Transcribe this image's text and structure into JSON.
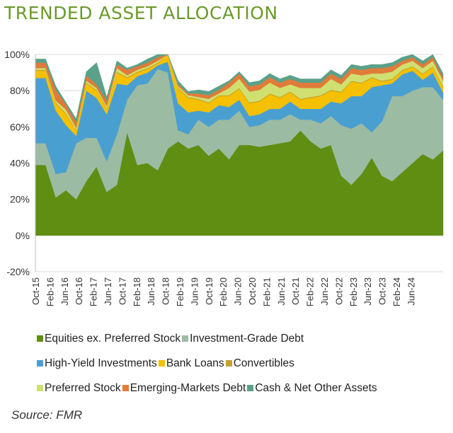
{
  "title": "TRENDED ASSET ALLOCATION",
  "source": "Source: FMR",
  "chart_data": {
    "type": "area",
    "stacked": true,
    "ylim": [
      -20,
      100
    ],
    "yticks": [
      "-20%",
      "0%",
      "20%",
      "40%",
      "60%",
      "80%",
      "100%"
    ],
    "ytick_values": [
      -20,
      0,
      20,
      40,
      60,
      80,
      100
    ],
    "xtick_labels": [
      "Oct-15",
      "Feb-16",
      "Jun-16",
      "Oct-16",
      "Feb-17",
      "Jun-17",
      "Oct-17",
      "Feb-18",
      "Jun-18",
      "Oct-18",
      "Feb-19",
      "Jun-19",
      "Oct-19",
      "Feb-20",
      "Jun-20",
      "Oct-20",
      "Feb-21",
      "Jun-21",
      "Oct-21",
      "Feb-22",
      "Jun-22",
      "Oct-22",
      "Feb-23",
      "Jun-23",
      "Oct-23",
      "Feb-24",
      "Jun-24"
    ],
    "x_start": "Oct-15",
    "x_end": "Oct-24",
    "grid": "horizontal",
    "legend_position": "bottom",
    "series": [
      {
        "name": "Equities ex. Preferred Stock",
        "color": "#5f8e12",
        "values": [
          39,
          39,
          21,
          25,
          20,
          30,
          38,
          24,
          28,
          57,
          39,
          40,
          36,
          48,
          52,
          48,
          50,
          44,
          48,
          42,
          50,
          50,
          49,
          50,
          51,
          52,
          58,
          52,
          48,
          50,
          33,
          28,
          34,
          43,
          33,
          30,
          35,
          40,
          45,
          42,
          47
        ]
      },
      {
        "name": "Investment-Grade Debt",
        "color": "#9cbba3",
        "values": [
          12,
          12,
          13,
          10,
          31,
          24,
          16,
          17,
          28,
          18,
          44,
          44,
          56,
          42,
          6,
          8,
          14,
          16,
          16,
          22,
          19,
          10,
          12,
          14,
          13,
          15,
          6,
          12,
          14,
          16,
          28,
          31,
          28,
          14,
          30,
          47,
          42,
          40,
          37,
          40,
          28
        ]
      },
      {
        "name": "High-Yield Investments",
        "color": "#4a9fd1",
        "values": [
          36,
          36,
          35,
          26,
          4,
          26,
          22,
          26,
          28,
          8,
          5,
          6,
          2,
          6,
          15,
          12,
          5,
          8,
          8,
          7,
          6,
          6,
          6,
          6,
          6,
          7,
          6,
          6,
          8,
          8,
          12,
          18,
          15,
          25,
          20,
          7,
          12,
          11,
          4,
          8,
          4
        ]
      },
      {
        "name": "Bank Loans",
        "color": "#f5c000",
        "values": [
          4,
          4,
          4,
          6,
          3,
          4,
          4,
          3,
          6,
          4,
          2,
          2,
          1,
          4,
          8,
          8,
          6,
          5,
          5,
          6,
          6,
          7,
          7,
          8,
          6,
          5,
          5,
          6,
          7,
          6,
          6,
          8,
          7,
          5,
          2,
          2,
          2,
          2,
          3,
          3,
          3
        ]
      },
      {
        "name": "Convertibles",
        "color": "#c8a226",
        "values": [
          0.5,
          0.5,
          0.5,
          0.5,
          0.5,
          0.5,
          0.5,
          0.5,
          0.5,
          0.5,
          0.5,
          0.5,
          0.5,
          0.5,
          0.5,
          0.5,
          0.5,
          0.5,
          0.5,
          0.5,
          0.5,
          0.5,
          0.5,
          0.5,
          0.5,
          0.5,
          0.5,
          0.5,
          0.5,
          0.5,
          0.5,
          0.5,
          0.5,
          0.5,
          0.5,
          0.5,
          0.5,
          0.5,
          0.5,
          0.5,
          0.5
        ]
      },
      {
        "name": "Preferred Stock",
        "color": "#cfe070",
        "values": [
          1,
          1,
          1,
          2,
          1,
          1,
          1,
          1,
          2,
          1,
          1,
          1,
          1,
          1,
          1,
          1,
          1,
          2,
          1,
          4,
          5,
          6,
          6,
          6,
          5,
          4,
          6,
          5,
          4,
          6,
          4,
          4,
          4,
          2,
          4,
          4,
          3,
          3,
          3,
          3,
          3
        ]
      },
      {
        "name": "Emerging-Markets Debt",
        "color": "#e07b39",
        "values": [
          3,
          3,
          6,
          3,
          3,
          3,
          2,
          3,
          2,
          3,
          2,
          2,
          2,
          2,
          1,
          1,
          2,
          2,
          2,
          3,
          3,
          3,
          3,
          3,
          3,
          3,
          3,
          3,
          3,
          3,
          3,
          3,
          3,
          3,
          3,
          3,
          2,
          2,
          2,
          2,
          2
        ]
      },
      {
        "name": "Cash & Net Other Assets",
        "color": "#5aa18a",
        "values": [
          2,
          2,
          2,
          1,
          2,
          2,
          12,
          2,
          2,
          1,
          1,
          2,
          2,
          2,
          2,
          1,
          2,
          2,
          2,
          1,
          1,
          2,
          2,
          2,
          2,
          2,
          2,
          2,
          2,
          2,
          2,
          2,
          2,
          2,
          2,
          2,
          2,
          2,
          2,
          2,
          2
        ]
      }
    ],
    "reds_note": ""
  },
  "legend_rows": [
    [
      "Equities ex. Preferred Stock",
      "Investment-Grade Debt"
    ],
    [
      "High-Yield Investments",
      "Bank Loans",
      "Convertibles"
    ],
    [
      "Preferred Stock",
      "Emerging-Markets Debt",
      "Cash & Net Other Assets"
    ]
  ]
}
